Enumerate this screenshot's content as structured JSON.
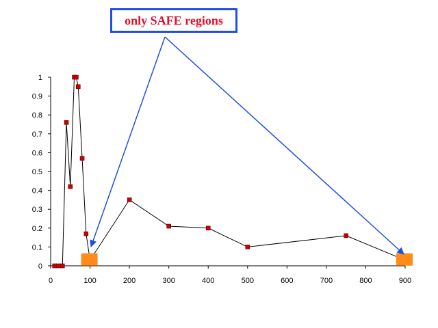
{
  "annotation": {
    "label": "only SAFE regions"
  },
  "chart_data": {
    "type": "line",
    "title": "",
    "xlabel": "",
    "ylabel": "",
    "xlim": [
      0,
      900
    ],
    "ylim": [
      0,
      1
    ],
    "x_ticks": [
      0,
      100,
      200,
      300,
      400,
      500,
      600,
      700,
      800,
      900
    ],
    "y_ticks": [
      0,
      0.1,
      0.2,
      0.3,
      0.4,
      0.5,
      0.6,
      0.7,
      0.8,
      0.9,
      1
    ],
    "grid": false,
    "legend": "none",
    "series": [
      {
        "color": "#cc0000",
        "points": [
          {
            "x": 10,
            "y": 0
          },
          {
            "x": 20,
            "y": 0
          },
          {
            "x": 30,
            "y": 0
          },
          {
            "x": 40,
            "y": 0.76
          },
          {
            "x": 50,
            "y": 0.42
          },
          {
            "x": 60,
            "y": 1.0
          },
          {
            "x": 65,
            "y": 1.0
          },
          {
            "x": 70,
            "y": 0.95
          },
          {
            "x": 80,
            "y": 0.57
          },
          {
            "x": 90,
            "y": 0.17
          },
          {
            "x": 100,
            "y": 0.03
          },
          {
            "x": 200,
            "y": 0.35
          },
          {
            "x": 300,
            "y": 0.21
          },
          {
            "x": 400,
            "y": 0.2
          },
          {
            "x": 500,
            "y": 0.1
          },
          {
            "x": 750,
            "y": 0.16
          },
          {
            "x": 900,
            "y": 0.03
          }
        ]
      }
    ],
    "safe_regions": [
      {
        "x": 100,
        "y": 0.03
      },
      {
        "x": 900,
        "y": 0.03
      }
    ],
    "colors": {
      "line": "#000000",
      "marker": "#cc0000",
      "safe_region": "#ff8c1a",
      "arrow": "#1f4fe0",
      "label": "#e0102f"
    }
  }
}
